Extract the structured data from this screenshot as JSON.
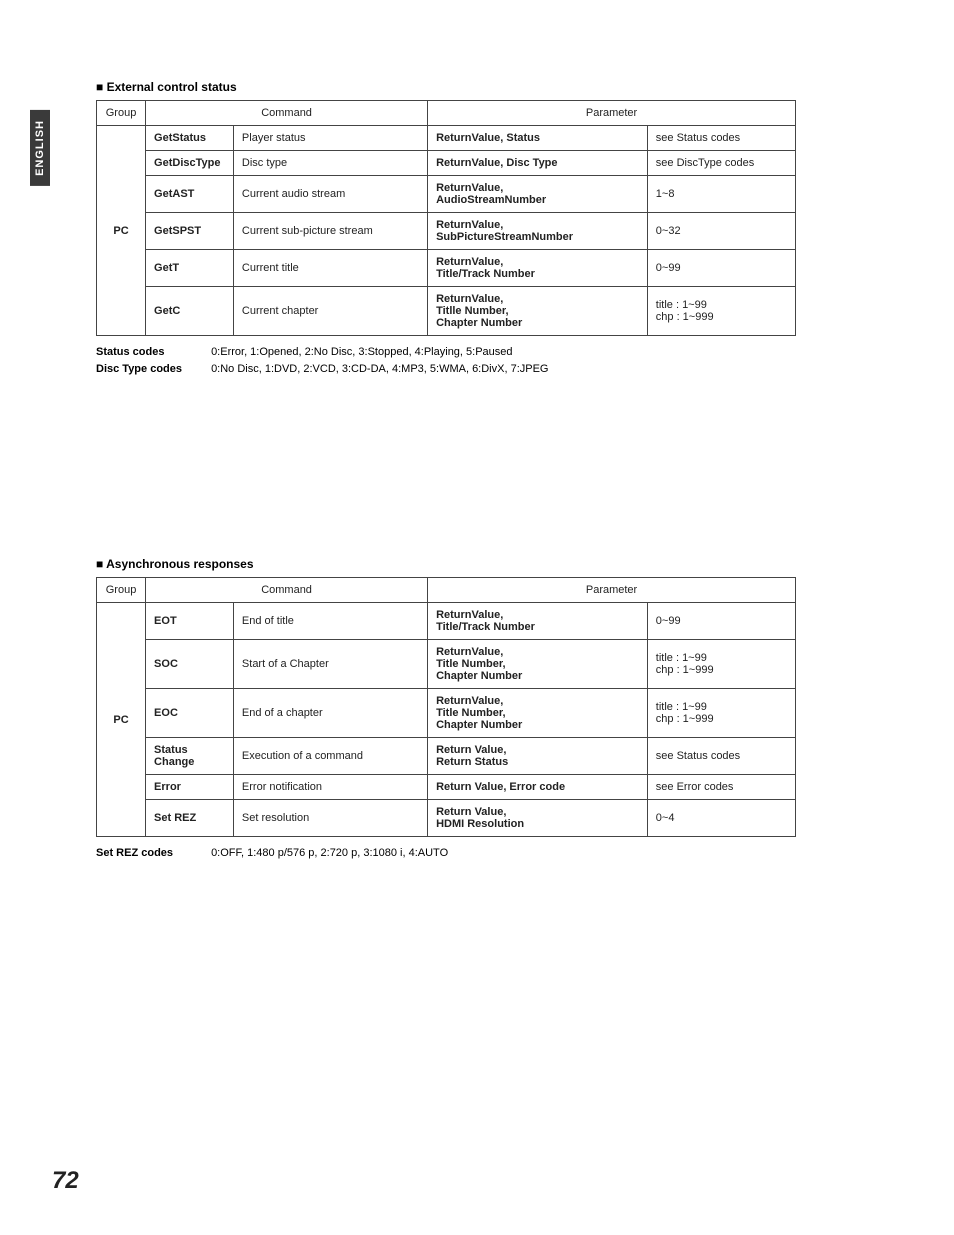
{
  "sideTab": "ENGLISH",
  "pageNumber": "72",
  "section1": {
    "heading": "■ External control status",
    "headers": {
      "group": "Group",
      "command": "Command",
      "parameter": "Parameter"
    },
    "groupLabel": "PC",
    "rows": [
      {
        "cmd": "GetStatus",
        "desc": "Player status",
        "param": "ReturnValue, Status",
        "value": "see Status codes"
      },
      {
        "cmd": "GetDiscType",
        "desc": "Disc type",
        "param": "ReturnValue, Disc Type",
        "value": "see DiscType codes"
      },
      {
        "cmd": "GetAST",
        "desc": "Current audio stream",
        "param": "ReturnValue,\nAudioStreamNumber",
        "value": "1~8"
      },
      {
        "cmd": "GetSPST",
        "desc": "Current sub-picture stream",
        "param": "ReturnValue,\nSubPictureStreamNumber",
        "value": "0~32"
      },
      {
        "cmd": "GetT",
        "desc": "Current title",
        "param": "ReturnValue,\nTitle/Track Number",
        "value": "0~99"
      },
      {
        "cmd": "GetC",
        "desc": "Current chapter",
        "param": "ReturnValue,\nTitlle Number,\nChapter Number",
        "value": "title : 1~99\nchp : 1~999"
      }
    ],
    "codes": [
      {
        "label": "Status codes",
        "text": "0:Error, 1:Opened, 2:No Disc, 3:Stopped, 4:Playing, 5:Paused"
      },
      {
        "label": "Disc Type codes",
        "text": "0:No Disc, 1:DVD, 2:VCD, 3:CD-DA, 4:MP3, 5:WMA, 6:DivX, 7:JPEG"
      }
    ]
  },
  "section2": {
    "heading": "■ Asynchronous responses",
    "headers": {
      "group": "Group",
      "command": "Command",
      "parameter": "Parameter"
    },
    "groupLabel": "PC",
    "rows": [
      {
        "cmd": "EOT",
        "desc": "End of title",
        "param": "ReturnValue,\nTitle/Track Number",
        "value": "0~99"
      },
      {
        "cmd": "SOC",
        "desc": "Start of a Chapter",
        "param": "ReturnValue,\nTitle Number,\nChapter Number",
        "value": "title : 1~99\nchp : 1~999"
      },
      {
        "cmd": "EOC",
        "desc": "End of a chapter",
        "param": "ReturnValue,\nTitle Number,\nChapter Number",
        "value": "title : 1~99\nchp : 1~999"
      },
      {
        "cmd": "Status\nChange",
        "desc": "Execution of a command",
        "param": "Return Value,\nReturn Status",
        "value": "see Status codes"
      },
      {
        "cmd": "Error",
        "desc": "Error notification",
        "param": "Return Value, Error code",
        "value": "see Error codes"
      },
      {
        "cmd": "Set REZ",
        "desc": "Set resolution",
        "param": "Return Value,\nHDMI Resolution",
        "value": "0~4"
      }
    ],
    "codes": [
      {
        "label": "Set REZ codes",
        "text": "0:OFF, 1:480 p/576 p, 2:720 p, 3:1080 i, 4:AUTO"
      }
    ]
  }
}
